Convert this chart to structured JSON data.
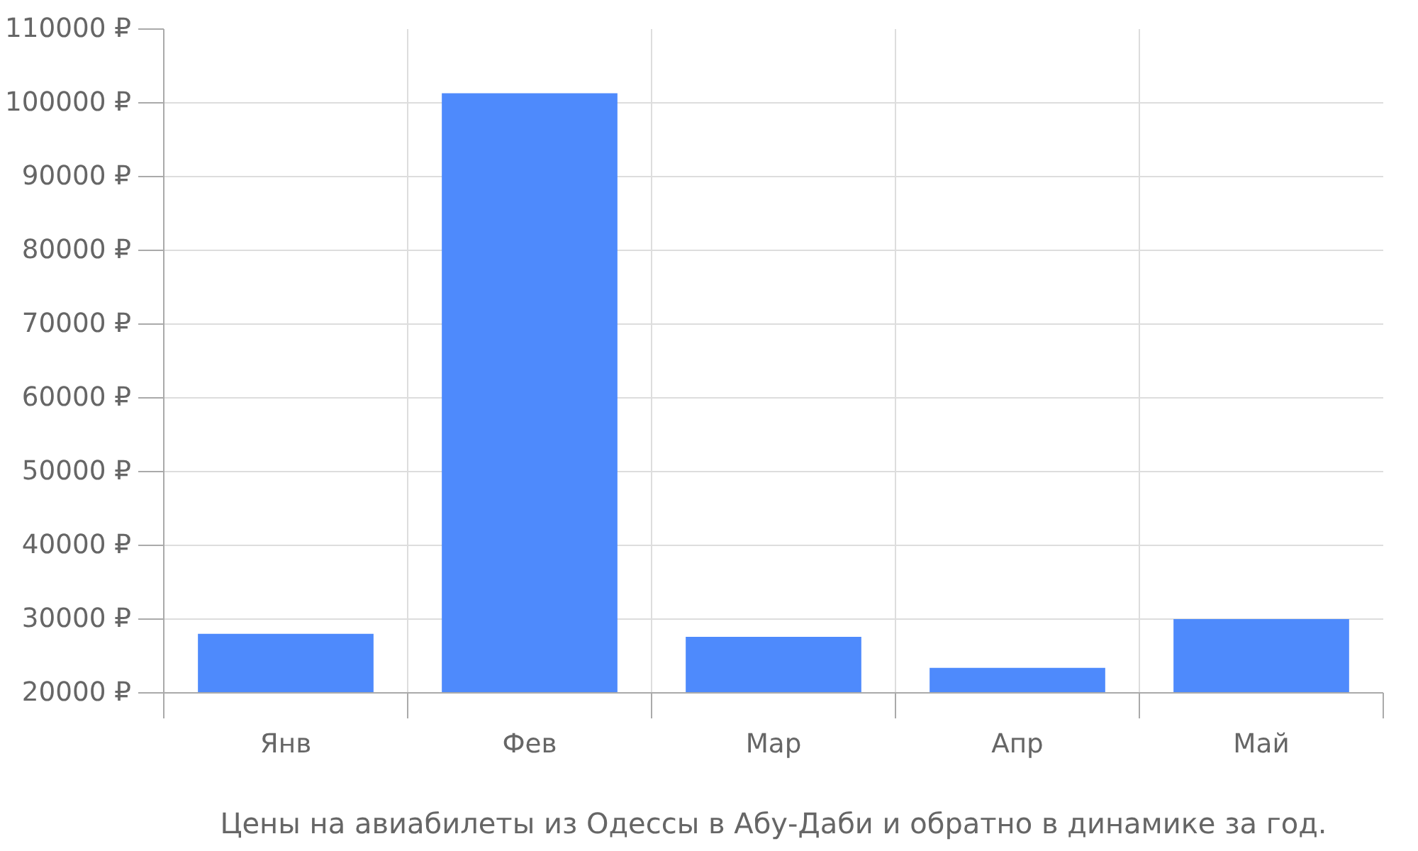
{
  "chart_data": {
    "type": "bar",
    "xlabel": "Цены на авиабилеты из Одессы в Абу-Даби и обратно в динамике за год.",
    "categories": [
      "Янв",
      "Фев",
      "Мар",
      "Апр",
      "Май"
    ],
    "values": [
      28000,
      101300,
      27600,
      23400,
      30000
    ],
    "color": "#4e8afc",
    "ylim": [
      20000,
      110000
    ],
    "yticks": [
      {
        "value": 20000,
        "label": "20000 ₽"
      },
      {
        "value": 30000,
        "label": "30000 ₽"
      },
      {
        "value": 40000,
        "label": "40000 ₽"
      },
      {
        "value": 50000,
        "label": "50000 ₽"
      },
      {
        "value": 60000,
        "label": "60000 ₽"
      },
      {
        "value": 70000,
        "label": "70000 ₽"
      },
      {
        "value": 80000,
        "label": "80000 ₽"
      },
      {
        "value": 90000,
        "label": "90000 ₽"
      },
      {
        "value": 100000,
        "label": "100000 ₽"
      },
      {
        "value": 110000,
        "label": "110000 ₽"
      }
    ],
    "grid": true
  }
}
